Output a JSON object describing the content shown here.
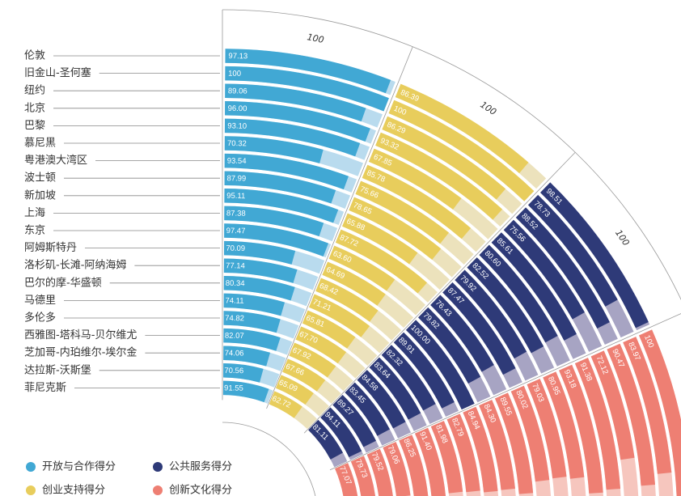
{
  "chart_data": {
    "type": "radial_bar",
    "categories": [
      "伦敦",
      "旧金山-圣何塞",
      "纽约",
      "北京",
      "巴黎",
      "慕尼黑",
      "粤港澳大湾区",
      "波士顿",
      "新加坡",
      "上海",
      "东京",
      "阿姆斯特丹",
      "洛杉矶-长滩-阿纳海姆",
      "巴尔的摩-华盛顿",
      "马德里",
      "多伦多",
      "西雅图-塔科马-贝尔维尤",
      "芝加哥-内珀维尔-埃尔金",
      "达拉斯-沃斯堡",
      "菲尼克斯"
    ],
    "ylim": [
      0,
      100
    ],
    "series": [
      {
        "name": "开放与合作得分",
        "color": "#41a8d4",
        "background": "#b9dbee",
        "values": [
          97.13,
          100,
          89.06,
          96.0,
          93.1,
          70.32,
          93.54,
          87.99,
          95.11,
          87.38,
          97.47,
          70.09,
          77.14,
          80.34,
          74.11,
          74.82,
          82.07,
          74.06,
          70.56,
          91.55
        ],
        "value_labels": [
          "97.13",
          "100",
          "89.06",
          "96.00",
          "93.10",
          "70.32",
          "93.54",
          "87.99",
          "95.11",
          "87.38",
          "97.47",
          "70.09",
          "77.14",
          "80.34",
          "74.11",
          "74.82",
          "82.07",
          "74.06",
          "70.56",
          "91.55"
        ]
      },
      {
        "name": "创业支持得分",
        "color": "#e8cd5c",
        "background": "#ece2bc",
        "values": [
          86.39,
          100,
          86.29,
          93.32,
          67.85,
          85.78,
          75.66,
          78.65,
          65.88,
          87.72,
          63.6,
          64.69,
          68.42,
          71.21,
          65.81,
          67.7,
          67.92,
          67.66,
          65.09,
          62.72
        ],
        "value_labels": [
          "86.39",
          "100",
          "86.29",
          "93.32",
          "67.85",
          "85.78",
          "75.66",
          "78.65",
          "65.88",
          "87.72",
          "63.60",
          "64.69",
          "68.42",
          "71.21",
          "65.81",
          "67.70",
          "67.92",
          "67.66",
          "65.09",
          "62.72"
        ]
      },
      {
        "name": "公共服务得分",
        "color": "#2e3a78",
        "background": "#a7a4c3",
        "values": [
          98.51,
          78.73,
          88.52,
          75.56,
          85.61,
          80.6,
          82.52,
          79.92,
          87.47,
          76.43,
          79.82,
          100.0,
          89.91,
          82.32,
          83.64,
          84.58,
          83.45,
          89.27,
          94.11,
          81.11
        ],
        "value_labels": [
          "98.51",
          "78.73",
          "88.52",
          "75.56",
          "85.61",
          "80.60",
          "82.52",
          "79.92",
          "87.47",
          "76.43",
          "79.82",
          "100.00",
          "89.91",
          "82.32",
          "83.64",
          "84.58",
          "83.45",
          "89.27",
          "94.11",
          "81.11"
        ]
      },
      {
        "name": "创新文化得分",
        "color": "#ee7f73",
        "background": "#f6c6be",
        "values": [
          100,
          83.97,
          90.47,
          72.12,
          91.38,
          93.18,
          80.95,
          79.03,
          80.02,
          89.55,
          84.3,
          84.94,
          82.79,
          81.98,
          91.4,
          86.25,
          79.06,
          79.52,
          79.73,
          77.07
        ],
        "value_labels": [
          "100",
          "83.97",
          "90.47",
          "72.12",
          "91.38",
          "93.18",
          "80.95",
          "79.03",
          "80.02",
          "89.55",
          "84.30",
          "84.94",
          "82.79",
          "81.98",
          "91.40",
          "86.25",
          "79.06",
          "79.52",
          "79.73",
          "77.07"
        ]
      }
    ]
  }
}
